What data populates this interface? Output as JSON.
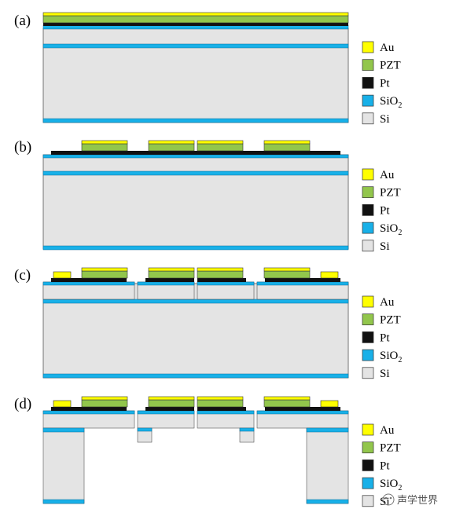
{
  "panels": [
    {
      "id": "a",
      "label": "(a)"
    },
    {
      "id": "b",
      "label": "(b)"
    },
    {
      "id": "c",
      "label": "(c)"
    },
    {
      "id": "d",
      "label": "(d)"
    }
  ],
  "legend": [
    {
      "key": "au",
      "label": "Au",
      "color": "#ffff00",
      "sub": ""
    },
    {
      "key": "pzt",
      "label": "PZT",
      "color": "#92c64c",
      "sub": ""
    },
    {
      "key": "pt",
      "label": "Pt",
      "color": "#111111",
      "sub": ""
    },
    {
      "key": "sio2",
      "label": "SiO",
      "color": "#18b0e8",
      "sub": "2"
    },
    {
      "key": "si",
      "label": "Si",
      "color": "#e4e4e4",
      "sub": ""
    }
  ],
  "watermark": {
    "text": "声学世界"
  }
}
